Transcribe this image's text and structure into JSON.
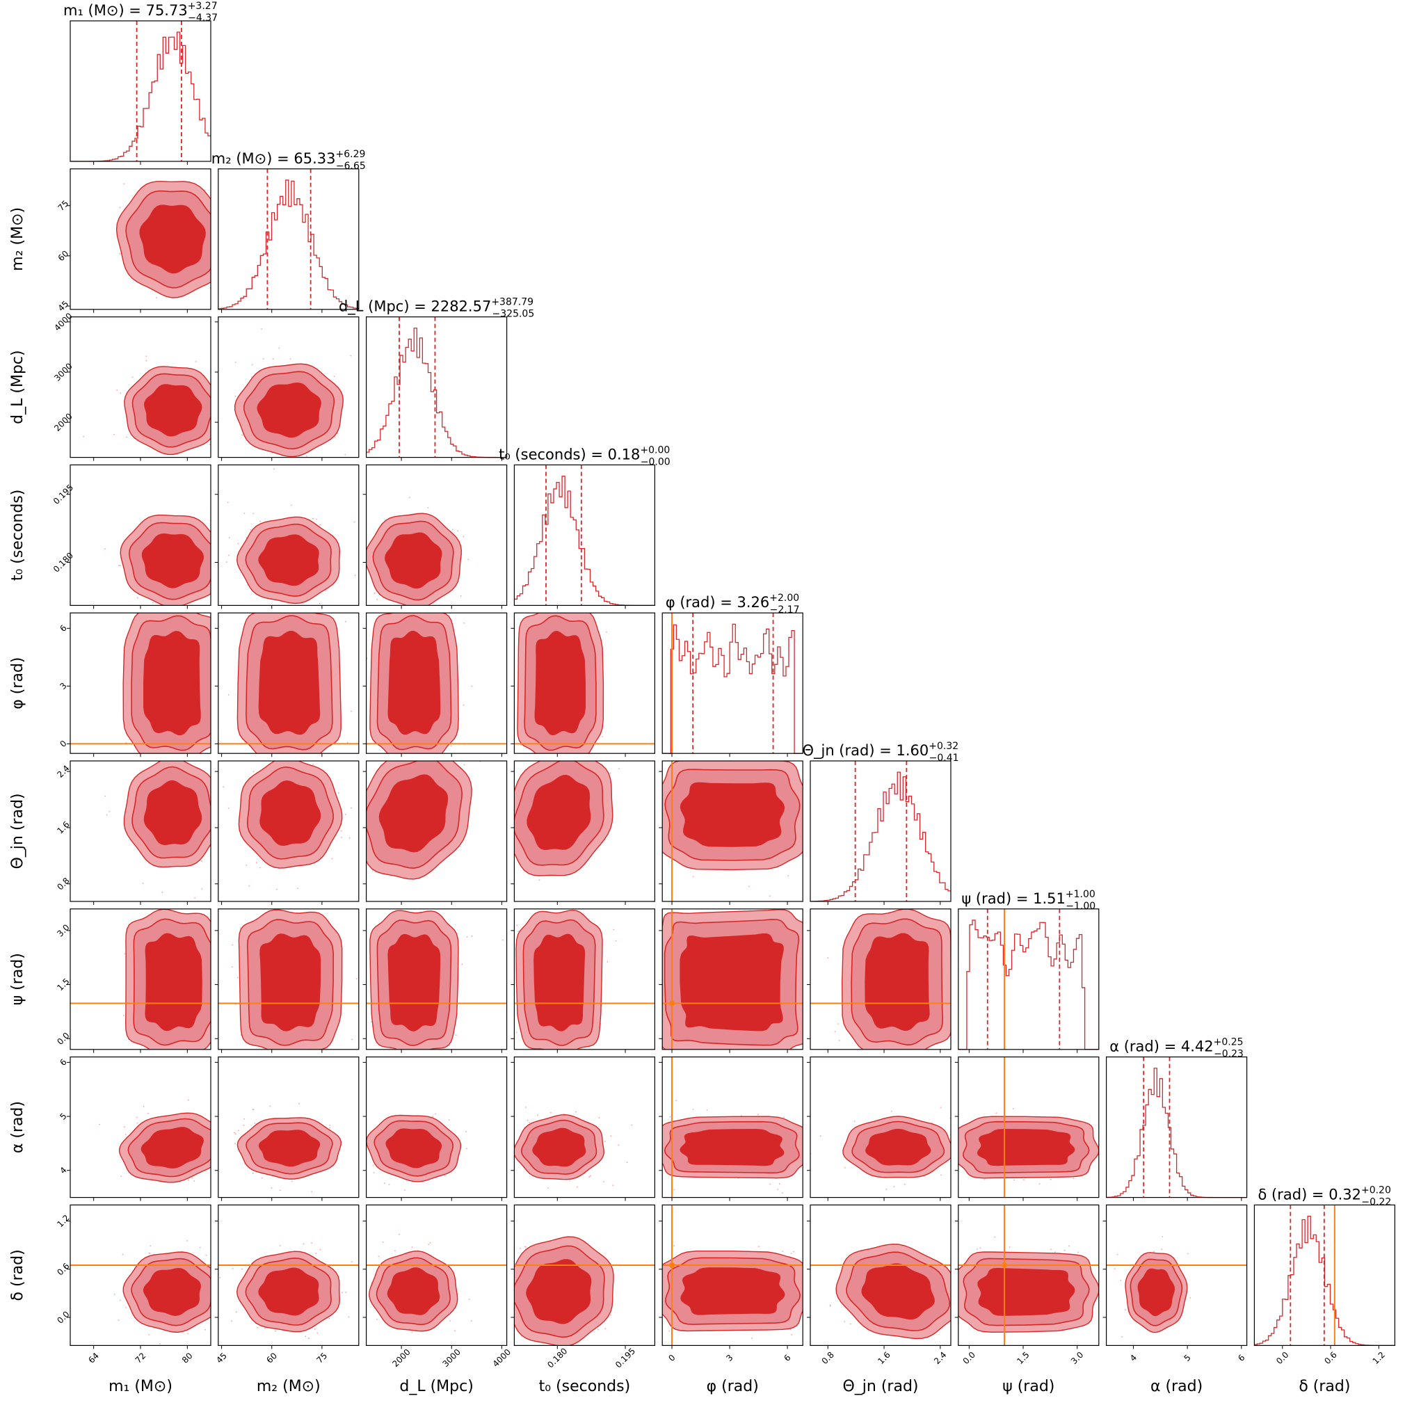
{
  "chart_data": {
    "type": "corner",
    "color": "#d62728",
    "truth_color": "#ff7f0e",
    "parameters": [
      {
        "key": "m1",
        "label": "m₁ (M⊙)",
        "title": "m₁ (M⊙) = 75.73",
        "median": 75.73,
        "plus": "+3.27",
        "minus": "−4.37",
        "range": [
          60,
          84
        ],
        "ticks": [
          64,
          72,
          80
        ],
        "lo": 71.36,
        "hi": 79.0,
        "sd": 3.5,
        "peak": 77.5
      },
      {
        "key": "m2",
        "label": "m₂ (M⊙)",
        "title": "m₂ (M⊙) = 65.33",
        "median": 65.33,
        "plus": "+6.29",
        "minus": "−6.65",
        "range": [
          44,
          86
        ],
        "ticks": [
          45,
          60,
          75
        ],
        "lo": 58.68,
        "hi": 71.62,
        "sd": 6.5,
        "peak": 65.33
      },
      {
        "key": "dL",
        "label": "d_L (Mpc)",
        "title": "d_L (Mpc) = 2282.57",
        "median": 2282.57,
        "plus": "+387.79",
        "minus": "−325.05",
        "range": [
          1300,
          4100
        ],
        "ticks": [
          2000,
          3000,
          4000
        ],
        "lo": 1957.52,
        "hi": 2670.36,
        "sd": 370,
        "peak": 2250
      },
      {
        "key": "t0",
        "label": "t₀ (seconds)",
        "title": "t₀ (seconds) = 0.18",
        "median": 0.18,
        "plus": "+0.00",
        "minus": "−0.00",
        "range": [
          0.1705,
          0.2015
        ],
        "ticks": [
          0.18,
          0.195
        ],
        "tick_text": [
          "0.180",
          "0.195"
        ],
        "lo": 0.1775,
        "hi": 0.1853,
        "sd": 0.004,
        "peak": 0.1805
      },
      {
        "key": "phi",
        "label": "φ (rad)",
        "title": "φ (rad) = 3.26",
        "median": 3.26,
        "plus": "+2.00",
        "minus": "−2.17",
        "range": [
          -0.5,
          6.8
        ],
        "ticks": [
          0,
          3,
          6
        ],
        "lo": 1.09,
        "hi": 5.26,
        "truth": 0,
        "uniform": [
          0,
          6.28
        ]
      },
      {
        "key": "theta",
        "label": "Θ_jn (rad)",
        "title": "Θ_jn (rad) = 1.60",
        "median": 1.6,
        "plus": "+0.32",
        "minus": "−0.41",
        "range": [
          0.55,
          2.55
        ],
        "ticks": [
          0.8,
          1.6,
          2.4
        ],
        "lo": 1.19,
        "hi": 1.92,
        "sd": 0.33,
        "peak": 1.8
      },
      {
        "key": "psi",
        "label": "ψ (rad)",
        "title": "ψ (rad) = 1.51",
        "median": 1.51,
        "plus": "+1.00",
        "minus": "−1.00",
        "range": [
          -0.3,
          3.6
        ],
        "ticks": [
          0.0,
          1.5,
          3.0
        ],
        "tick_text": [
          "0.0",
          "1.5",
          "3.0"
        ],
        "lo": 0.51,
        "hi": 2.51,
        "truth": 0.98,
        "uniform": [
          0,
          3.14
        ]
      },
      {
        "key": "alpha",
        "label": "α (rad)",
        "title": "α (rad) = 4.42",
        "median": 4.42,
        "plus": "+0.25",
        "minus": "−0.23",
        "range": [
          3.5,
          6.1
        ],
        "ticks": [
          4,
          5,
          6
        ],
        "lo": 4.19,
        "hi": 4.67,
        "sd": 0.24,
        "peak": 4.42
      },
      {
        "key": "delta",
        "label": "δ (rad)",
        "title": "δ (rad) = 0.32",
        "median": 0.32,
        "plus": "+0.20",
        "minus": "−0.22",
        "range": [
          -0.35,
          1.4
        ],
        "ticks": [
          0.0,
          0.6,
          1.2
        ],
        "tick_text": [
          "0.0",
          "0.6",
          "1.2"
        ],
        "lo": 0.1,
        "hi": 0.52,
        "sd": 0.21,
        "peak": 0.32,
        "truth": 0.65
      }
    ],
    "correlations": {
      "dL|theta": -0.55,
      "t0|theta": -0.45,
      "t0|delta": 0.75,
      "m1|m2": 0.3,
      "m1|alpha": 0.2,
      "dL|t0": -0.2,
      "theta|delta": -0.3,
      "m1|t0": -0.15,
      "m2|dL": 0.1,
      "dL|alpha": -0.15,
      "t0|alpha": 0.1
    }
  }
}
